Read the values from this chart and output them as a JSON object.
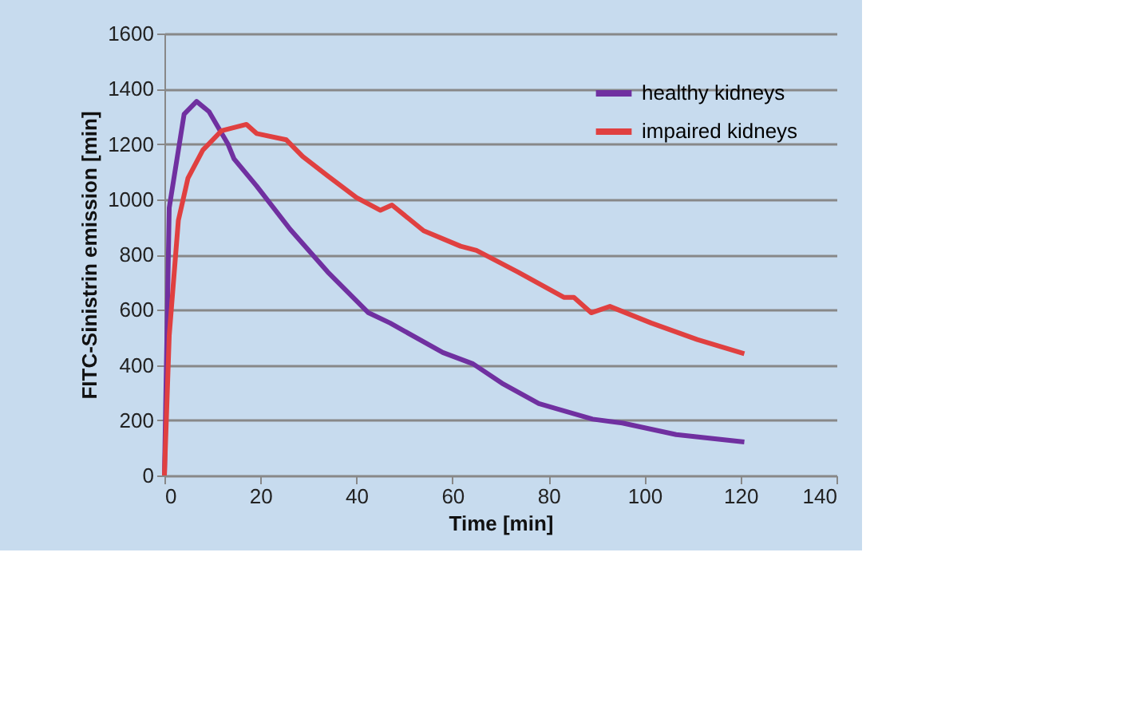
{
  "chart_data": {
    "type": "line",
    "xlabel": "Time [min]",
    "ylabel": "FITC-Sinistrin emission [min]",
    "xlim": [
      0,
      140
    ],
    "xticks": [
      0,
      20,
      40,
      60,
      80,
      100,
      120,
      140
    ],
    "ylim": [
      0,
      1600
    ],
    "yticks": [
      0,
      200,
      400,
      600,
      800,
      1000,
      1200,
      1400,
      1600
    ],
    "grid": "y",
    "legend": "top right",
    "marker": "none",
    "line_style": "solid",
    "series": [
      {
        "name": "healthy kidneys",
        "color": "#7030a0",
        "x": [
          0,
          1,
          4.1,
          6.7,
          9.3,
          13.2,
          14.5,
          19.2,
          26.2,
          34,
          42.5,
          47,
          58,
          64.3,
          70.3,
          78,
          89.2,
          95.4,
          106.6,
          120.8
        ],
        "values": [
          0,
          969,
          1308,
          1354,
          1317,
          1201,
          1146,
          1048,
          891,
          737,
          589,
          552,
          445,
          404,
          334,
          260,
          204,
          190,
          148,
          121
        ]
      },
      {
        "name": "impaired kidneys",
        "color": "#e04040",
        "x": [
          0,
          1,
          2.9,
          4.9,
          8,
          11.9,
          17.1,
          19.2,
          25.4,
          28.8,
          34,
          40,
          45,
          47.4,
          54,
          61.7,
          65,
          73.6,
          83.2,
          85.3,
          88.9,
          92.8,
          101.4,
          111,
          120.8
        ],
        "values": [
          0,
          506,
          923,
          1076,
          1178,
          1248,
          1271,
          1238,
          1215,
          1155,
          1085,
          1006,
          960,
          979,
          886,
          830,
          815,
          737,
          645,
          645,
          589,
          612,
          552,
          492,
          441
        ]
      }
    ]
  }
}
